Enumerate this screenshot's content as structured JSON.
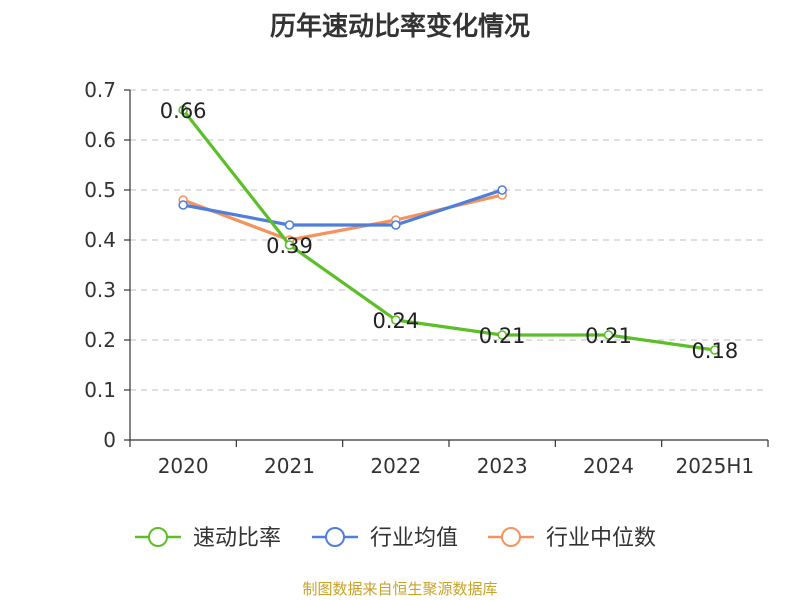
{
  "title": "历年速动比率变化情况",
  "source": "制图数据来自恒生聚源数据库",
  "chart_data": {
    "type": "line",
    "title": "历年速动比率变化情况",
    "categories": [
      "2020",
      "2021",
      "2022",
      "2023",
      "2024",
      "2025H1"
    ],
    "y_ticks": [
      "0",
      "0.1",
      "0.2",
      "0.3",
      "0.4",
      "0.5",
      "0.6",
      "0.7"
    ],
    "ylim": [
      0,
      0.7
    ],
    "grid": true,
    "legend_position": "bottom",
    "series": [
      {
        "name": "速动比率",
        "color": "#5cbf2a",
        "values": [
          0.66,
          0.39,
          0.24,
          0.21,
          0.21,
          0.18
        ],
        "labels": [
          "0.66",
          "0.39",
          "0.24",
          "0.21",
          "0.21",
          "0.18"
        ]
      },
      {
        "name": "行业均值",
        "color": "#4f7fdc",
        "values": [
          0.47,
          0.43,
          0.43,
          0.5,
          null,
          null
        ]
      },
      {
        "name": "行业中位数",
        "color": "#f4935e",
        "values": [
          0.48,
          0.4,
          0.44,
          0.49,
          null,
          null
        ]
      }
    ]
  }
}
